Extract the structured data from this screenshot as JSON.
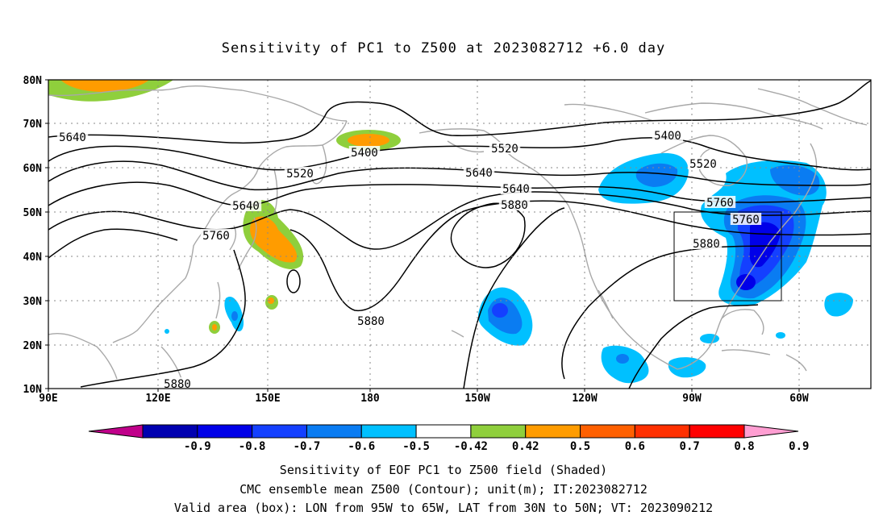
{
  "title": "Sensitivity of PC1 to Z500 at 2023082712 +6.0 day",
  "map": {
    "lon_ticks": [
      "90E",
      "120E",
      "150E",
      "180",
      "150W",
      "120W",
      "90W",
      "60W"
    ],
    "lat_ticks": [
      "80N",
      "70N",
      "60N",
      "50N",
      "40N",
      "30N",
      "20N",
      "10N"
    ],
    "contour_labels": [
      "5640",
      "5400",
      "5520",
      "5520",
      "5640",
      "5400",
      "5520",
      "5640",
      "5640",
      "5760",
      "5880",
      "5760",
      "5760",
      "5880",
      "5880",
      "5880"
    ],
    "valid_box": {
      "lon_from": "95W",
      "lon_to": "65W",
      "lat_from": "30N",
      "lat_to": "50N"
    }
  },
  "colorbar": {
    "labels": [
      "-0.9",
      "-0.8",
      "-0.7",
      "-0.6",
      "-0.5",
      "-0.42",
      "0.42",
      "0.5",
      "0.6",
      "0.7",
      "0.8",
      "0.9"
    ],
    "colors": [
      "#c0008a",
      "#0000b0",
      "#0000e8",
      "#1440ff",
      "#0a7cf2",
      "#00c0ff",
      "#ffffff",
      "#8fcf3c",
      "#ff9c00",
      "#ff6000",
      "#ff3000",
      "#ff0000",
      "#ff9ed2"
    ]
  },
  "captions": [
    "Sensitivity of EOF PC1 to Z500 field (Shaded)",
    "CMC ensemble mean Z500 (Contour); unit(m); IT:2023082712",
    "Valid area (box): LON from 95W to 65W, LAT from 30N to 50N; VT: 2023090212"
  ]
}
